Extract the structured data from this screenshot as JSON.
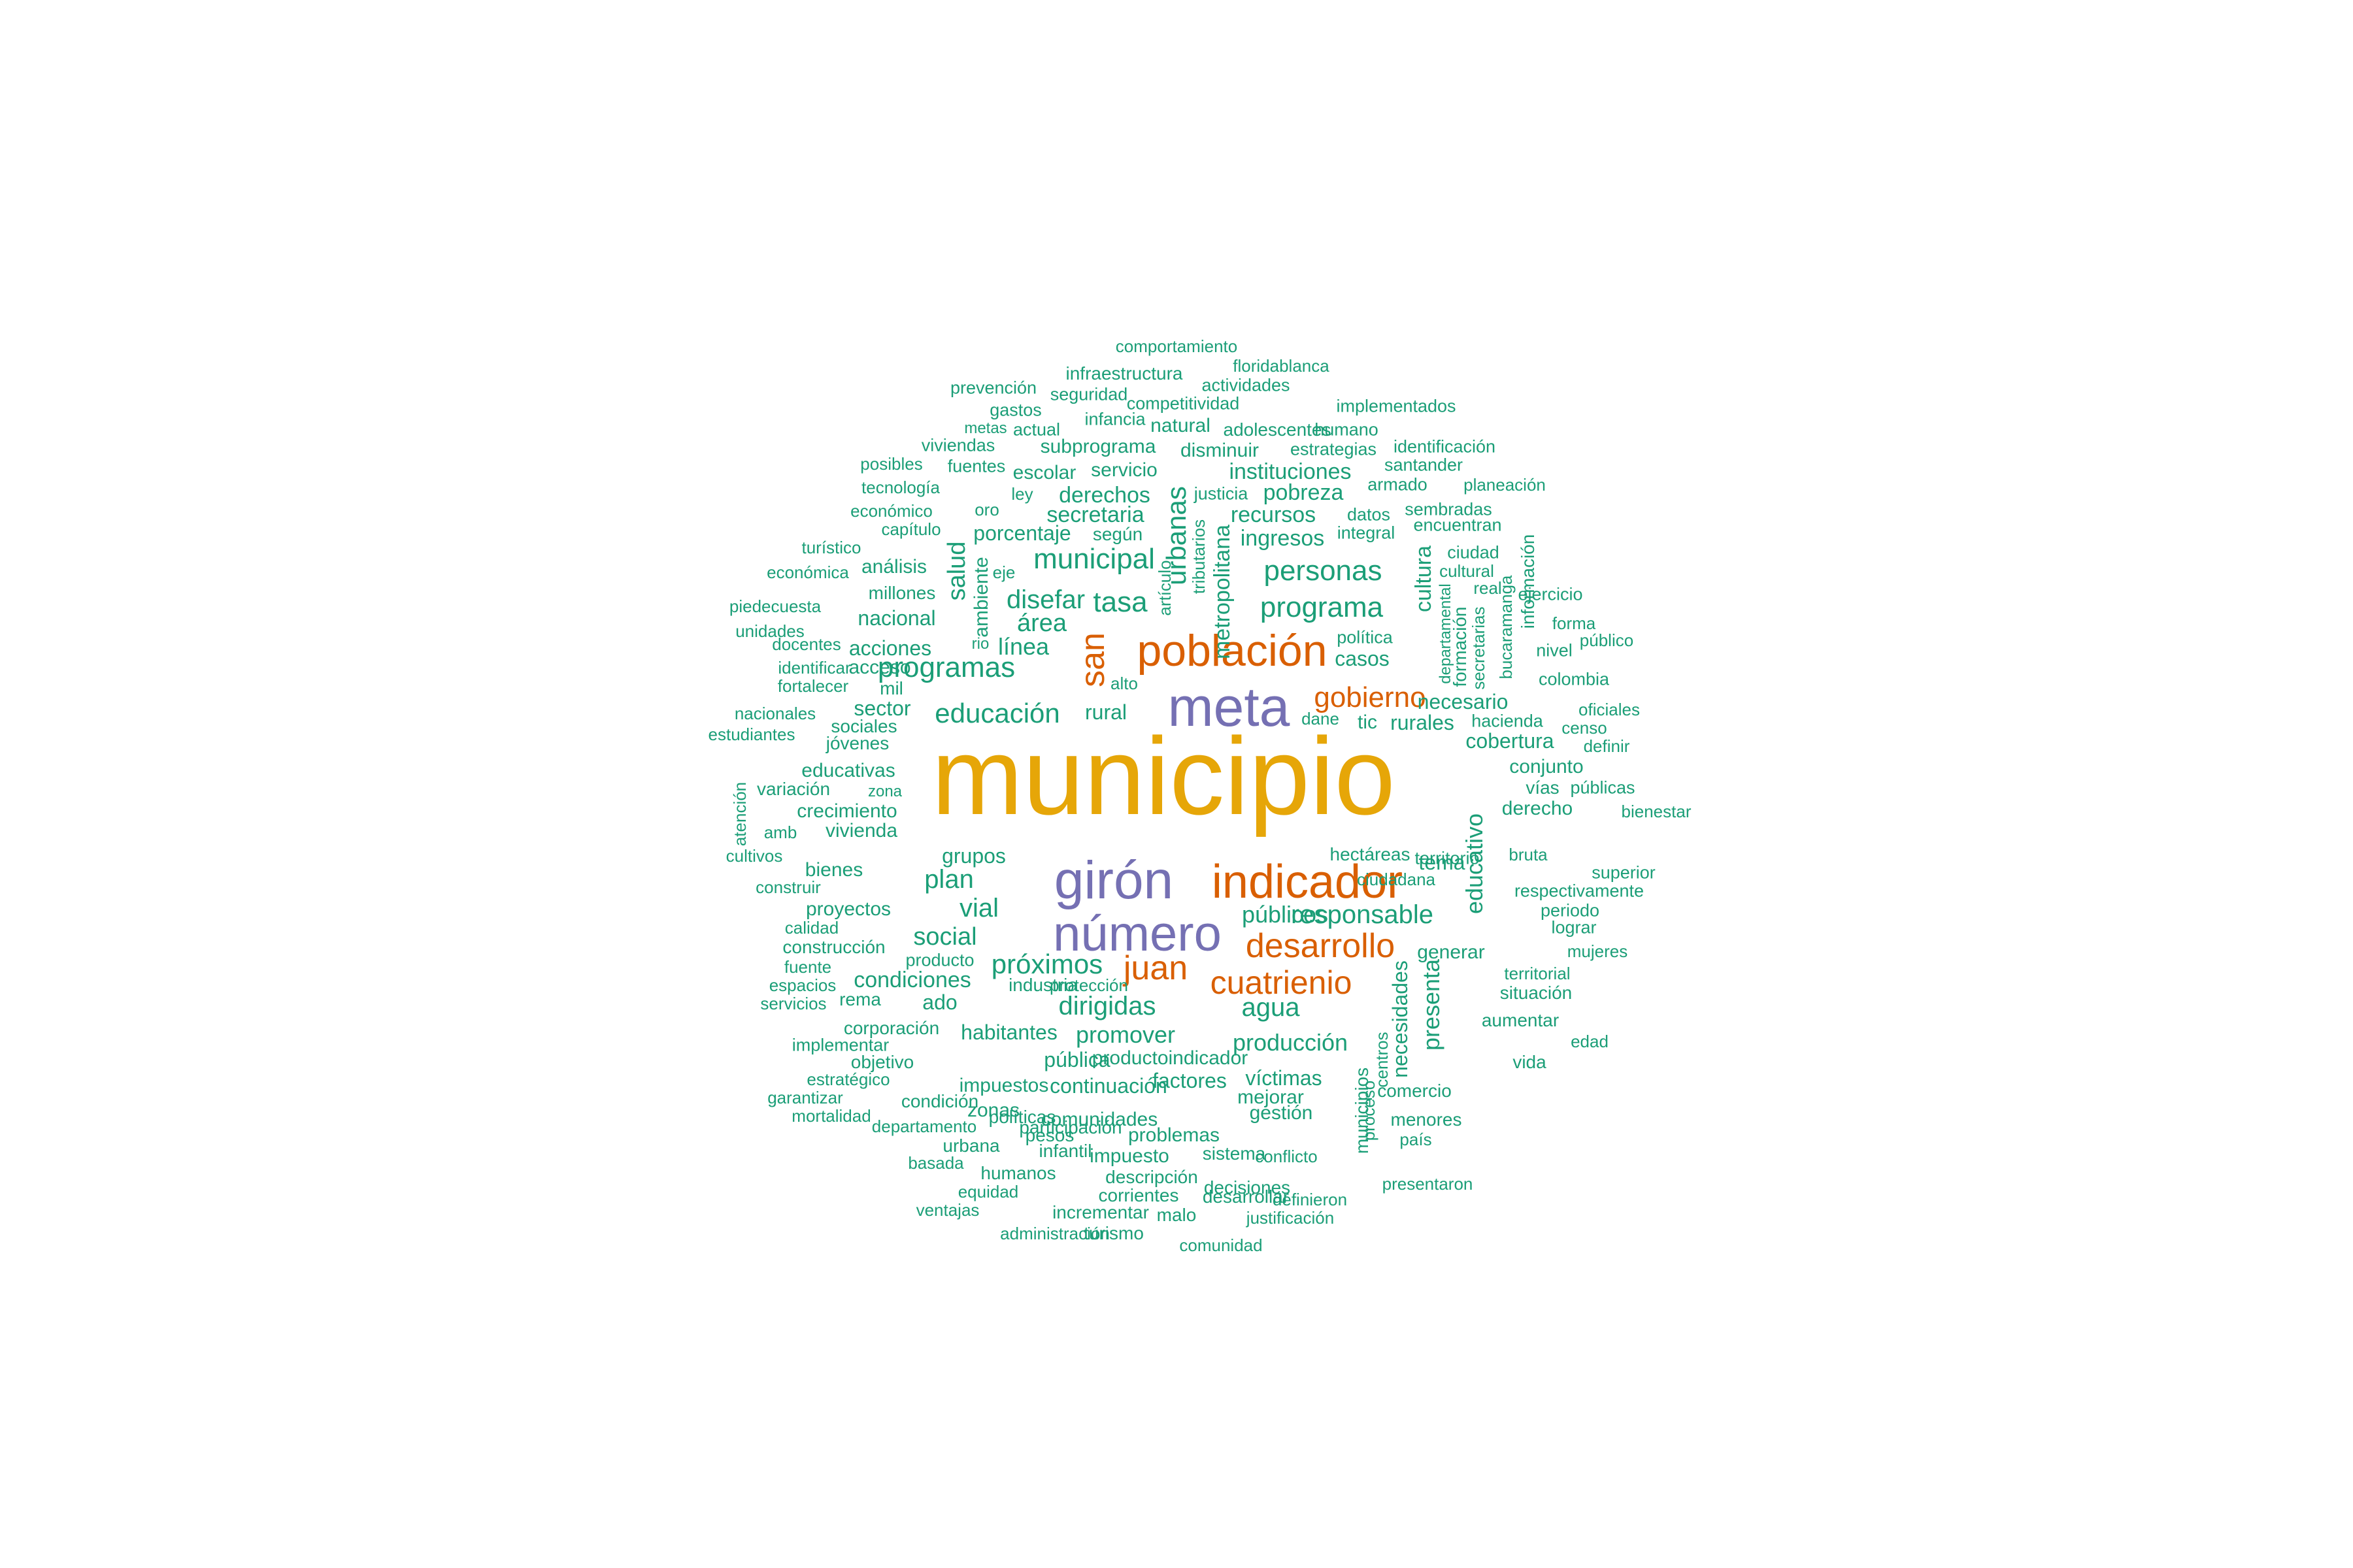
{
  "colors": {
    "top": "#E6A608",
    "secondary": "#7570B3",
    "tertiary": "#D95F02",
    "base": "#1B9E77"
  },
  "words": [
    "municipio",
    "meta",
    "girón",
    "número",
    "población",
    "indicador",
    "desarrollo",
    "juan",
    "cuatrienio",
    "san",
    "gobierno",
    "comportamiento",
    "floridablanca",
    "infraestructura",
    "prevención",
    "seguridad",
    "actividades",
    "gastos",
    "competitividad",
    "implementados",
    "infancia",
    "natural",
    "metas",
    "actual",
    "adolescentes",
    "humano",
    "viviendas",
    "subprograma",
    "disminuir",
    "estrategias",
    "identificación",
    "posibles",
    "fuentes",
    "servicio",
    "instituciones",
    "santander",
    "escolar",
    "tecnología",
    "ley",
    "derechos",
    "justicia",
    "pobreza",
    "armado",
    "planeación",
    "económico",
    "oro",
    "secretaria",
    "recursos",
    "sembradas",
    "datos",
    "encuentran",
    "capítulo",
    "porcentaje",
    "según",
    "ingresos",
    "integral",
    "turístico",
    "municipal",
    "personas",
    "ciudad",
    "análisis",
    "eje",
    "cultural",
    "económica",
    "real",
    "millones",
    "disefar",
    "tasa",
    "ejercicio",
    "piedecuesta",
    "nacional",
    "área",
    "programa",
    "forma",
    "unidades",
    "línea",
    "política",
    "nivel",
    "público",
    "docentes",
    "acciones",
    "rio",
    "casos",
    "identificar",
    "acceso",
    "programas",
    "alto",
    "colombia",
    "fortalecer",
    "mil",
    "educación",
    "necesario",
    "oficiales",
    "nacionales",
    "sector",
    "rural",
    "dane",
    "tic",
    "rurales",
    "hacienda",
    "censo",
    "estudiantes",
    "sociales",
    "cobertura",
    "definir",
    "jóvenes",
    "educativas",
    "conjunto",
    "variación",
    "zona",
    "vías",
    "públicas",
    "crecimiento",
    "derecho",
    "bienestar",
    "amb",
    "vivienda",
    "grupos",
    "hectáreas",
    "territorio",
    "bruta",
    "cultivos",
    "bienes",
    "tema",
    "superior",
    "construir",
    "plan",
    "ciudadana",
    "respectivamente",
    "proyectos",
    "vial",
    "públicos",
    "responsable",
    "periodo",
    "calidad",
    "social",
    "lograr",
    "construcción",
    "próximos",
    "generar",
    "mujeres",
    "fuente",
    "producto",
    "territorial",
    "espacios",
    "condiciones",
    "industria",
    "protección",
    "servicios",
    "rema",
    "ado",
    "dirigidas",
    "agua",
    "situación",
    "corporación",
    "habitantes",
    "promover",
    "producción",
    "aumentar",
    "implementar",
    "objetivo",
    "pública",
    "productoindicador",
    "edad",
    "estratégico",
    "impuestos",
    "continuación",
    "factores",
    "víctimas",
    "vida",
    "garantizar",
    "condición",
    "zonas",
    "mejorar",
    "comercio",
    "mortalidad",
    "políticas",
    "participación",
    "comunidades",
    "gestión",
    "menores",
    "departamento",
    "pesos",
    "problemas",
    "país",
    "urbana",
    "infantil",
    "impuesto",
    "sistema",
    "conflicto",
    "basada",
    "humanos",
    "descripción",
    "decisiones",
    "presentaron",
    "equidad",
    "corrientes",
    "desarrollar",
    "definieron",
    "ventajas",
    "incrementar",
    "malo",
    "justificación",
    "administración",
    "turismo",
    "comunidad",
    "salud",
    "ambiente",
    "urbanas",
    "metropolitana",
    "tributarios",
    "artículo",
    "cultura",
    "formación",
    "departamental",
    "secretarias",
    "bucaramanga",
    "información",
    "atención",
    "educativo",
    "presenta",
    "necesidades",
    "centros",
    "proceso",
    "municipios"
  ]
}
